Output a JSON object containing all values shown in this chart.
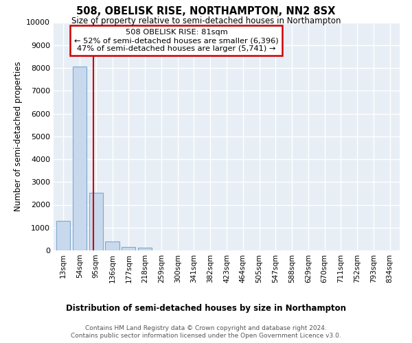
{
  "title": "508, OBELISK RISE, NORTHAMPTON, NN2 8SX",
  "subtitle": "Size of property relative to semi-detached houses in Northampton",
  "xlabel": "Distribution of semi-detached houses by size in Northampton",
  "ylabel": "Number of semi-detached properties",
  "bar_color": "#c8d8ed",
  "bar_edge_color": "#7aaad0",
  "categories": [
    "13sqm",
    "54sqm",
    "95sqm",
    "136sqm",
    "177sqm",
    "218sqm",
    "259sqm",
    "300sqm",
    "341sqm",
    "382sqm",
    "423sqm",
    "464sqm",
    "505sqm",
    "547sqm",
    "588sqm",
    "629sqm",
    "670sqm",
    "711sqm",
    "752sqm",
    "793sqm",
    "834sqm"
  ],
  "values": [
    1300,
    8050,
    2520,
    380,
    150,
    130,
    0,
    0,
    0,
    0,
    0,
    0,
    0,
    0,
    0,
    0,
    0,
    0,
    0,
    0,
    0
  ],
  "ylim": [
    0,
    10000
  ],
  "yticks": [
    0,
    1000,
    2000,
    3000,
    4000,
    5000,
    6000,
    7000,
    8000,
    9000,
    10000
  ],
  "property_line_x": 1.82,
  "annotation_line1": "508 OBELISK RISE: 81sqm",
  "annotation_line2": "← 52% of semi-detached houses are smaller (6,396)",
  "annotation_line3": "47% of semi-detached houses are larger (5,741) →",
  "annotation_box_color": "#ffffff",
  "annotation_box_edge": "#cc0000",
  "property_line_color": "#cc0000",
  "background_color": "#e8eef5",
  "grid_color": "#ffffff",
  "footer_line1": "Contains HM Land Registry data © Crown copyright and database right 2024.",
  "footer_line2": "Contains public sector information licensed under the Open Government Licence v3.0."
}
